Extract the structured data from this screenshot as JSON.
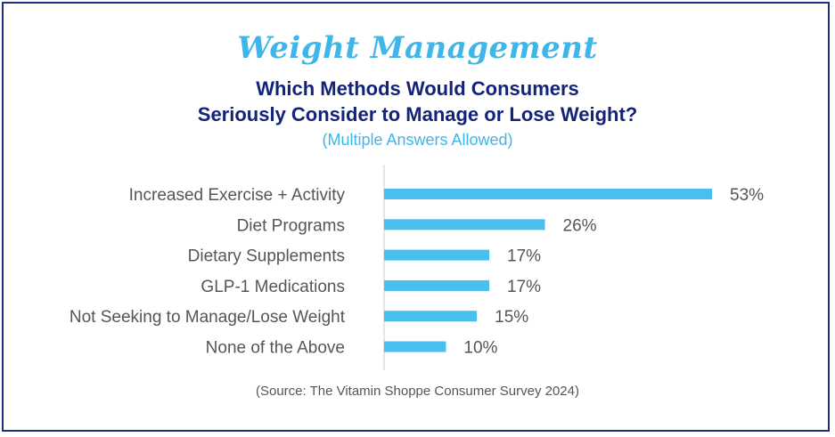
{
  "header": {
    "script_title": "Weight Management",
    "title_line1": "Which Methods Would Consumers",
    "title_line2": "Seriously Consider to Manage or Lose Weight?",
    "subtitle": "(Multiple Answers Allowed)"
  },
  "footer": {
    "source": "(Source: The Vitamin Shoppe Consumer Survey 2024)"
  },
  "colors": {
    "bar": "#48bfee",
    "title": "#13237a",
    "accent": "#3fb6ea",
    "border": "#1f2f7a",
    "axis": "#cccccc"
  },
  "chart_data": {
    "type": "bar",
    "orientation": "horizontal",
    "categories": [
      "Increased Exercise + Activity",
      "Diet Programs",
      "Dietary Supplements",
      "GLP-1 Medications",
      "Not Seeking to Manage/Lose Weight",
      "None of the Above"
    ],
    "values": [
      53,
      26,
      17,
      17,
      15,
      10
    ],
    "value_labels": [
      "53%",
      "26%",
      "17%",
      "17%",
      "15%",
      "10%"
    ],
    "unit": "%",
    "xlim": [
      0,
      60
    ],
    "grid": false,
    "legend": "none"
  }
}
